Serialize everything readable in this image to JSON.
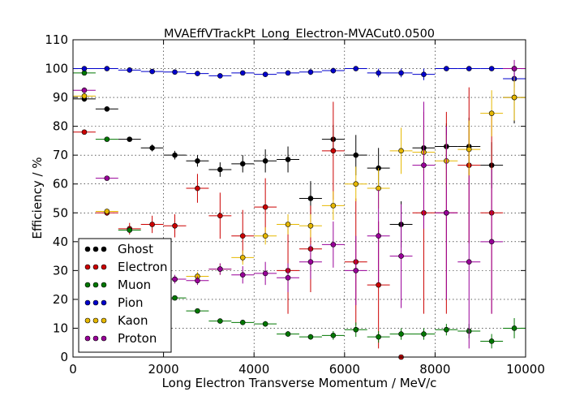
{
  "chart_data": {
    "type": "scatter",
    "title": "MVAEffVTrackPt_Long_Electron-MVACut0.0500",
    "xlabel": "Long Electron Transverse Momentum / MeV/c",
    "ylabel": "Efficiency / %",
    "xlim": [
      0,
      10000
    ],
    "ylim": [
      0,
      110
    ],
    "xticks": [
      "0",
      "2000",
      "4000",
      "6000",
      "8000",
      "10000"
    ],
    "yticks": [
      "0",
      "10",
      "20",
      "30",
      "40",
      "50",
      "60",
      "70",
      "80",
      "90",
      "100",
      "110"
    ],
    "grid": true,
    "legend_position": "lower-left",
    "x_bin_half_width": 250,
    "series": [
      {
        "name": "Ghost",
        "color": "#000000",
        "x": [
          250,
          750,
          1250,
          1750,
          2250,
          2750,
          3250,
          3750,
          4250,
          4750,
          5250,
          5750,
          6250,
          6750,
          7250,
          7750,
          8250,
          8750,
          9250,
          9750
        ],
        "y": [
          89.5,
          86,
          75.5,
          72.5,
          70,
          68,
          65,
          67,
          68,
          68.5,
          55,
          75.5,
          70,
          65.5,
          46,
          72.5,
          73,
          73,
          66.5,
          90
        ],
        "err": [
          1,
          0.8,
          0.8,
          1.2,
          1.5,
          2,
          2.5,
          3,
          4,
          4.5,
          6,
          5,
          7,
          7,
          8,
          8,
          8,
          10,
          8,
          9
        ]
      },
      {
        "name": "Electron",
        "color": "#cc0000",
        "x": [
          250,
          750,
          1250,
          1750,
          2250,
          2750,
          3250,
          3750,
          4250,
          4750,
          5250,
          5750,
          6250,
          6750,
          7250,
          7750,
          8250,
          8750,
          9250,
          9750
        ],
        "y": [
          78,
          50,
          44.5,
          46,
          45.5,
          58.5,
          49,
          42,
          52,
          30,
          37.5,
          71.5,
          33,
          25,
          0,
          50,
          50,
          66.5,
          50,
          100
        ],
        "err": [
          0.5,
          1,
          2,
          3,
          4,
          5,
          8,
          9,
          10,
          15,
          15,
          17,
          22,
          22,
          0,
          35,
          35,
          27,
          35,
          0
        ]
      },
      {
        "name": "Muon",
        "color": "#007700",
        "x": [
          250,
          750,
          1250,
          1750,
          2250,
          2750,
          3250,
          3750,
          4250,
          4750,
          5250,
          5750,
          6250,
          6750,
          7250,
          7750,
          8250,
          8750,
          9250,
          9750
        ],
        "y": [
          98.5,
          75.5,
          44,
          28,
          20.5,
          16,
          12.5,
          12,
          11.5,
          8,
          7,
          7.5,
          9.5,
          7,
          8,
          8,
          9.5,
          9,
          5.5,
          10
        ],
        "err": [
          0.3,
          0.5,
          0.8,
          0.8,
          0.8,
          0.8,
          0.8,
          0.8,
          1,
          1,
          1,
          1.5,
          2.5,
          2,
          2,
          2,
          2,
          2.5,
          2.5,
          3.5
        ]
      },
      {
        "name": "Pion",
        "color": "#0000cc",
        "x": [
          250,
          750,
          1250,
          1750,
          2250,
          2750,
          3250,
          3750,
          4250,
          4750,
          5250,
          5750,
          6250,
          6750,
          7250,
          7750,
          8250,
          8750,
          9250,
          9750
        ],
        "y": [
          100,
          100,
          99.5,
          99,
          98.8,
          98.3,
          97.5,
          98.5,
          98,
          98.5,
          98.8,
          99.3,
          100,
          98.5,
          98.5,
          98,
          100,
          100,
          100,
          96.5
        ],
        "err": [
          0.1,
          0.1,
          0.2,
          0.3,
          0.4,
          0.5,
          0.7,
          0.7,
          0.8,
          0.9,
          1,
          1,
          0,
          1.5,
          1.5,
          2,
          0,
          0,
          0,
          3
        ]
      },
      {
        "name": "Kaon",
        "color": "#e6b800",
        "x": [
          250,
          750,
          1250,
          1750,
          2250,
          2750,
          3250,
          3750,
          4250,
          4750,
          5250,
          5750,
          6250,
          6750,
          7250,
          7750,
          8250,
          8750,
          9250,
          9750
        ],
        "y": [
          90.5,
          50.5,
          28.5,
          25,
          27,
          28,
          30.5,
          34.5,
          42,
          46,
          45.5,
          52.5,
          60,
          58.5,
          71.5,
          71,
          68,
          72,
          84.5,
          90
        ],
        "err": [
          1,
          1,
          1,
          1,
          1.2,
          1.5,
          2,
          2.5,
          3,
          3.5,
          4,
          5,
          6,
          7,
          8,
          8,
          9,
          10,
          8,
          8
        ]
      },
      {
        "name": "Proton",
        "color": "#990099",
        "x": [
          250,
          750,
          1250,
          1750,
          2250,
          2750,
          3250,
          3750,
          4250,
          4750,
          5250,
          5750,
          6250,
          6750,
          7250,
          7750,
          8250,
          8750,
          9250,
          9750
        ],
        "y": [
          92.5,
          62,
          38,
          28,
          27,
          26.5,
          30.5,
          28.5,
          29,
          27.5,
          33,
          39,
          30,
          42,
          35,
          66.5,
          50,
          33,
          40,
          100
        ],
        "err": [
          1,
          0.8,
          1,
          1.2,
          1.5,
          1.5,
          2,
          3,
          4,
          5,
          6,
          8,
          12,
          16,
          18,
          22,
          30,
          30,
          25,
          3
        ]
      }
    ]
  }
}
